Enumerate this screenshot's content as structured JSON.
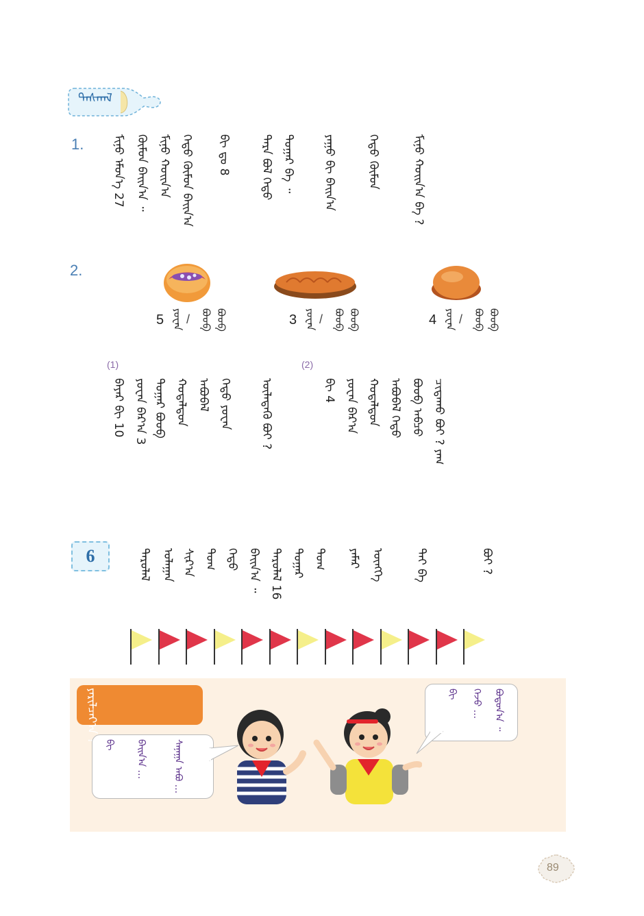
{
  "header": {
    "label": "ᠳᠠᠰᠬᠠᠯ"
  },
  "exercise1": {
    "number": "1.",
    "columns": [
      "ᠮᠢᠨᠤ ᠡᠮᠦᠨ᠎ᠡ 27",
      "ᠬᠦᠮᠦᠨ ᠪᠠᠢᠨ᠎ᠠ ᠃",
      "ᠮᠢᠨᠤ ᠬᠣᠢᠨ᠎ᠠ",
      "ᠬᠡᠳᠦ ᠬᠦᠮᠦᠨ ᠪᠠᠢᠨ᠎ᠠ",
      "ᠪᠢ ᠳᠤ 8",
      "ᠲᠡᠷᠡ ᠪᠤᠯ ᠬᠡᠳᠦ",
      "ᠳᠤᠭᠠᠷ ᠪᠡ ᠃",
      "ᠶᠠᠭᠤ ᠪᠢ ᠪᠠᠢᠨ᠎ᠠ",
      "ᠬᠡᠳᠦ ᠬᠦᠮᠦᠨ",
      "ᠮᠢᠨᠤ ᠬᠣᠢᠨ᠎ᠠ ᠪᠡ ?"
    ],
    "col_num_27": "27",
    "col_num_8": "8"
  },
  "exercise2": {
    "number": "2.",
    "items": [
      {
        "price": "5",
        "unit_a": "ᠶᠤᠸᠠᠨ",
        "unit_b": "ᠪᠣᠤᠪ"
      },
      {
        "price": "3",
        "unit_a": "ᠶᠤᠸᠠᠨ",
        "unit_b": "ᠪᠣᠤᠪ"
      },
      {
        "price": "4",
        "unit_a": "ᠶᠤᠸᠠᠨ",
        "unit_b": "ᠪᠣᠤᠪ"
      }
    ],
    "slash": "/",
    "sub1": {
      "label": "(1)",
      "columns": [
        "ᠪᠠᠶᠠᠷ ᠪᠢ 10",
        "ᠶᠤᠸᠠᠨ ᠪᠠᠷ᠎ᠠ 3",
        "ᠳᠤᠭᠠᠷ ᠪᠣᠤᠪ",
        "ᠬᠤᠳᠠᠯᠳᠤᠨ",
        "ᠠᠪᠤᠪᠠᠯ",
        "ᠬᠡᠳᠦ ᠶᠤᠸᠠᠨ",
        "ᠦᠯᠡᠳᠡᠬᠦ ᠪᠤᠢ ?"
      ]
    },
    "sub2": {
      "label": "(2)",
      "columns": [
        "ᠪᠢ 4",
        "ᠶᠤᠸᠠᠨ ᠪᠠᠷ᠎ᠠ",
        "ᠬᠤᠳᠠᠯᠳᠤᠨ",
        "ᠠᠪᠤᠪᠠᠯ ᠬᠡᠳᠦ",
        "ᠪᠣᠤᠪ ᠠᠪᠴᠤ",
        "ᠴᠢᠳᠠᠬᠤ ᠪᠤᠢ ? ᠶᠠᠭ",
        "ᠬᠡᠳᠦᠨ ᠃"
      ],
      "col_num_4": "4"
    }
  },
  "section6": {
    "tag": "6",
    "columns": [
      "ᠳᠠᠷᠤᠯᠠᠯ",
      "ᠤᠯᠠᠭᠠᠨ",
      "ᠰᠢᠷ᠎ᠠ",
      "ᠲᠤᠭ",
      "ᠬᠡᠳᠦ",
      "ᠪᠠᠢᠨ᠎ᠠ ᠃",
      "ᠳᠠᠷᠤᠯᠠᠯ 16",
      "ᠳᠤᠭᠠᠷ",
      "ᠲᠤᠭ",
      "ᠶᠠᠮᠠᠷ",
      "ᠥᠩᠭᠡ",
      "ᠲᠠᠢ ᠪᠡ",
      "ᠪᠤᠢ ?"
    ],
    "num_16": "16",
    "flags": [
      "yellow",
      "red",
      "red",
      "yellow",
      "red",
      "red",
      "yellow",
      "red",
      "red",
      "yellow",
      "red",
      "red",
      "yellow"
    ]
  },
  "discussion": {
    "tag_text": "ᠶᠠᠷᠢᠯᠴᠠᠶ᠎ᠠ ?",
    "left_bubble": [
      "ᠪᠢ",
      "ᠪᠠᠢᠨ᠎ᠠ ...",
      "ᠰᠠᠨᠠᠭᠠ ᠠᠪᠤ ..."
    ],
    "right_bubble": [
      "ᠪᠢ",
      "ᠭᠡᠵᠦ ...",
      "ᠪᠣᠳᠣᠨ᠎ᠠ ᠃"
    ]
  },
  "page_number": "89",
  "colors": {
    "blue_label": "#4a7fb4",
    "flag_yellow": "#f5ef8a",
    "flag_red": "#e0364a",
    "panel_bg": "#fdf1e3",
    "orange_tag": "#ef8a32"
  }
}
